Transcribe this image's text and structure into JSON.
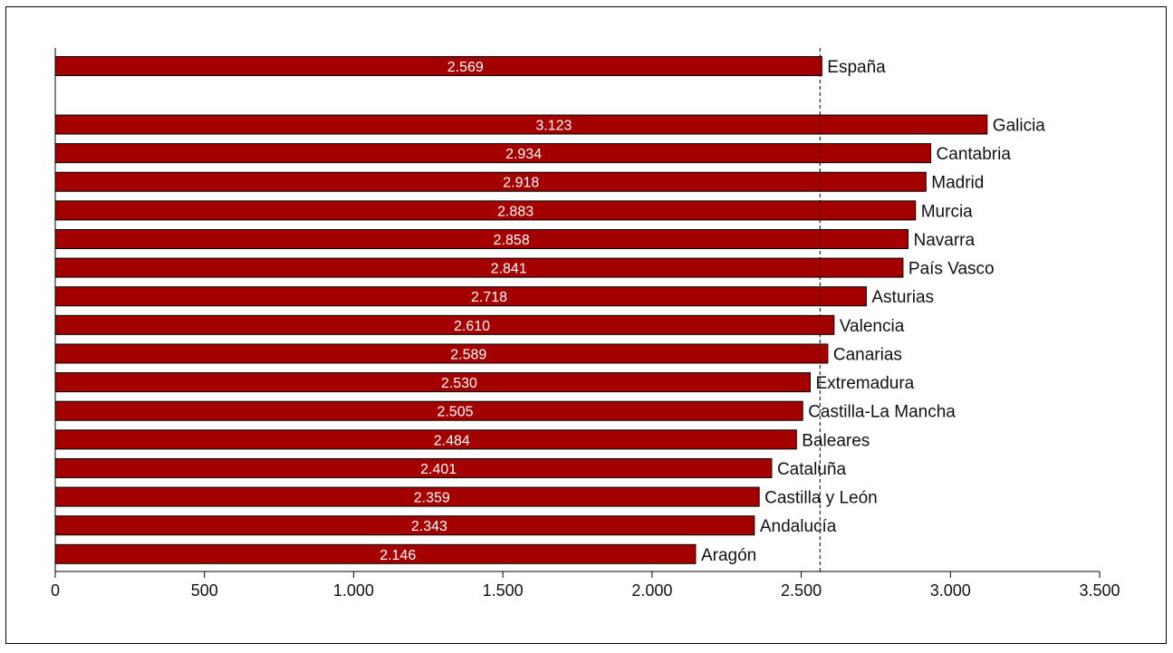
{
  "chart_data": {
    "type": "bar",
    "orientation": "horizontal",
    "title": "",
    "xlabel": "",
    "ylabel": "",
    "xlim": [
      0,
      3500
    ],
    "x_ticks": [
      0,
      500,
      1000,
      1500,
      2000,
      2500,
      3000,
      3500
    ],
    "x_tick_labels": [
      "0",
      "500",
      "1.000",
      "1.500",
      "2.000",
      "2.500",
      "3.000",
      "3.500"
    ],
    "reference_line": {
      "value": 2569,
      "style": "dashed"
    },
    "bar_color": "#A50000",
    "bars": [
      {
        "category": "España",
        "value": 2569,
        "value_label": "2.569"
      },
      {
        "category": "Galicia",
        "value": 3123,
        "value_label": "3.123"
      },
      {
        "category": "Cantabria",
        "value": 2934,
        "value_label": "2.934"
      },
      {
        "category": "Madrid",
        "value": 2918,
        "value_label": "2.918"
      },
      {
        "category": "Murcia",
        "value": 2883,
        "value_label": "2.883"
      },
      {
        "category": "Navarra",
        "value": 2858,
        "value_label": "2.858"
      },
      {
        "category": "País Vasco",
        "value": 2841,
        "value_label": "2.841"
      },
      {
        "category": "Asturias",
        "value": 2718,
        "value_label": "2.718"
      },
      {
        "category": "Valencia",
        "value": 2610,
        "value_label": "2.610"
      },
      {
        "category": "Canarias",
        "value": 2589,
        "value_label": "2.589"
      },
      {
        "category": "Extremadura",
        "value": 2530,
        "value_label": "2.530"
      },
      {
        "category": "Castilla-La Mancha",
        "value": 2505,
        "value_label": "2.505"
      },
      {
        "category": "Baleares",
        "value": 2484,
        "value_label": "2.484"
      },
      {
        "category": "Cataluña",
        "value": 2401,
        "value_label": "2.401"
      },
      {
        "category": "Castilla y León",
        "value": 2359,
        "value_label": "2.359"
      },
      {
        "category": "Andalucía",
        "value": 2343,
        "value_label": "2.343"
      },
      {
        "category": "Aragón",
        "value": 2146,
        "value_label": "2.146"
      }
    ]
  }
}
